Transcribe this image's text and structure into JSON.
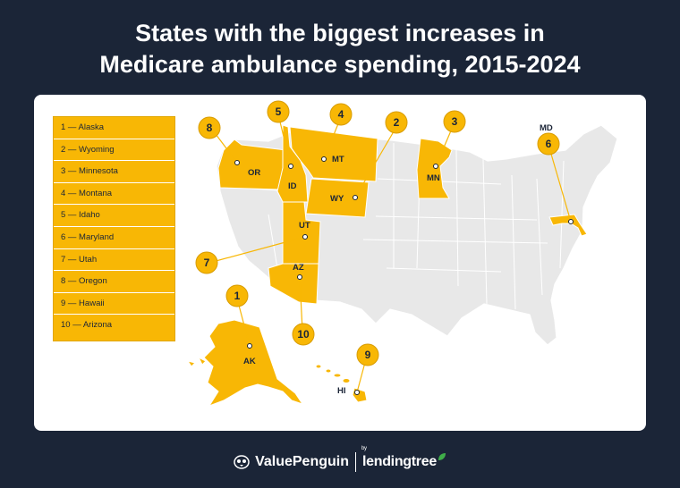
{
  "title": {
    "line1": "States with the biggest increases in",
    "line2": "Medicare ambulance spending, 2015-2024"
  },
  "legend": [
    "1 — Alaska",
    "2 — Wyoming",
    "3 — Minnesota",
    "4 — Montana",
    "5 — Idaho",
    "6 — Maryland",
    "7 — Utah",
    "8 — Oregon",
    "9 — Hawaii",
    "10 — Arizona"
  ],
  "markers": {
    "ak": {
      "rank": "1",
      "abbr": "AK"
    },
    "wy": {
      "rank": "2",
      "abbr": "WY"
    },
    "mn": {
      "rank": "3",
      "abbr": "MN"
    },
    "mt": {
      "rank": "4",
      "abbr": "MT"
    },
    "id": {
      "rank": "5",
      "abbr": "ID"
    },
    "md": {
      "rank": "6",
      "abbr": "MD"
    },
    "ut": {
      "rank": "7",
      "abbr": "UT"
    },
    "or": {
      "rank": "8",
      "abbr": "OR"
    },
    "hi": {
      "rank": "9",
      "abbr": "HI"
    },
    "az": {
      "rank": "10",
      "abbr": "AZ"
    }
  },
  "colors": {
    "highlight": "#f8b705",
    "base_state": "#e8e8e8",
    "background": "#1b2537"
  },
  "footer": {
    "brand1": "ValuePenguin",
    "by": "by",
    "brand2": "lendingtree"
  }
}
